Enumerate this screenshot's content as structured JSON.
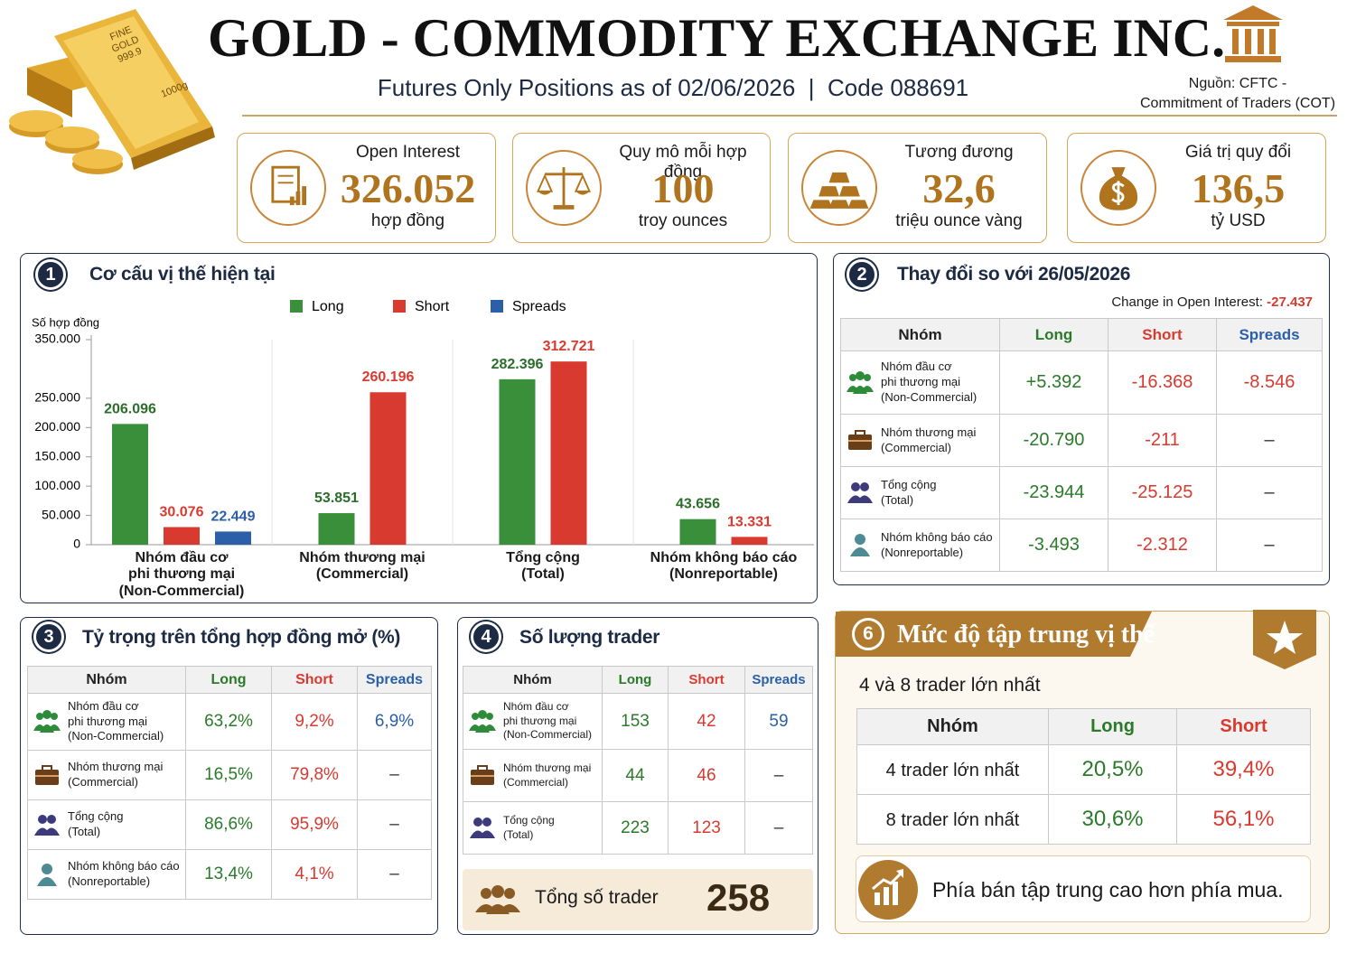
{
  "header": {
    "title": "GOLD - COMMODITY EXCHANGE INC.",
    "subtitle": "Futures Only Positions as of 02/06/2026  |  Code 088691",
    "source": "Nguồn: CFTC -\nCommitment of Traders (COT)",
    "bar_text": "FINE\nGOLD\n999.9",
    "bar_weight": "1000g"
  },
  "cards": [
    {
      "label": "Open Interest",
      "value": "326.052",
      "unit": "hợp đồng"
    },
    {
      "label": "Quy mô mỗi hợp đồng",
      "value": "100",
      "unit": "troy ounces"
    },
    {
      "label": "Tương đương",
      "value": "32,6",
      "unit": "triệu ounce vàng"
    },
    {
      "label": "Giá trị quy đổi",
      "value": "136,5",
      "unit": "tỷ USD"
    }
  ],
  "chart_data": {
    "type": "bar",
    "number": "1",
    "title": "Cơ cấu vị thế hiện tại",
    "y_label": "Số hợp đồng",
    "categories": [
      "Nhóm đầu cơ\nphi thương mại\n(Non-Commercial)",
      "Nhóm thương mại\n(Commercial)",
      "Tổng cộng\n(Total)",
      "Nhóm không báo cáo\n(Nonreportable)"
    ],
    "series": [
      {
        "name": "Long",
        "color": "#3a8f3a",
        "values": [
          206096,
          53851,
          282396,
          43656
        ],
        "value_labels": [
          "206.096",
          "53.851",
          "282.396",
          "43.656"
        ]
      },
      {
        "name": "Short",
        "color": "#d93a2f",
        "values": [
          30076,
          260196,
          312721,
          13331
        ],
        "value_labels": [
          "30.076",
          "260.196",
          "312.721",
          "13.331"
        ]
      },
      {
        "name": "Spreads",
        "color": "#2b5fa8",
        "values": [
          22449,
          null,
          null,
          null
        ],
        "value_labels": [
          "22.449",
          null,
          null,
          null
        ]
      }
    ],
    "ylim": [
      0,
      350000
    ],
    "yticks": [
      0,
      {
        "value": 50000,
        "label": "50.000"
      },
      {
        "value": 100000,
        "label": "100.000"
      },
      {
        "value": 150000,
        "label": "150.000"
      },
      {
        "value": 200000,
        "label": "200.000"
      },
      {
        "value": 250000,
        "label": "250.000"
      },
      {
        "value": 350000,
        "label": "350.000"
      }
    ],
    "legend": "top"
  },
  "changes": {
    "number": "2",
    "title": "Thay đổi so với 26/05/2026",
    "note_label": "Change in Open Interest:",
    "note_value": "-27.437",
    "header": [
      "Nhóm",
      "Long",
      "Short",
      "Spreads"
    ],
    "rows": [
      [
        "Nhóm đầu cơ\nphi thương mại\n(Non-Commercial)",
        "+5.392",
        "-16.368",
        "-8.546"
      ],
      [
        "Nhóm thương mại\n(Commercial)",
        "-20.790",
        "-211",
        "–"
      ],
      [
        "Tổng cộng\n(Total)",
        "-23.944",
        "-25.125",
        "–"
      ],
      [
        "Nhóm không báo cáo\n(Nonreportable)",
        "-3.493",
        "-2.312",
        "–"
      ]
    ]
  },
  "shares": {
    "number": "3",
    "title": "Tỷ trọng trên tổng hợp đồng mở (%)",
    "header": [
      "Nhóm",
      "Long",
      "Short",
      "Spreads"
    ],
    "rows": [
      [
        "Nhóm đầu cơ\nphi thương mại\n(Non-Commercial)",
        "63,2%",
        "9,2%",
        "6,9%"
      ],
      [
        "Nhóm thương mại\n(Commercial)",
        "16,5%",
        "79,8%",
        "–"
      ],
      [
        "Tổng cộng\n(Total)",
        "86,6%",
        "95,9%",
        "–"
      ],
      [
        "Nhóm không báo cáo\n(Nonreportable)",
        "13,4%",
        "4,1%",
        "–"
      ]
    ]
  },
  "traders": {
    "number": "4",
    "title": "Số lượng trader",
    "header": [
      "Nhóm",
      "Long",
      "Short",
      "Spreads"
    ],
    "rows": [
      [
        "Nhóm đầu cơ\nphi thương mại\n(Non-Commercial)",
        "153",
        "42",
        "59"
      ],
      [
        "Nhóm thương mại\n(Commercial)",
        "44",
        "46",
        "–"
      ],
      [
        "Tổng cộng\n(Total)",
        "223",
        "123",
        "–"
      ]
    ],
    "total_label": "Tổng số trader",
    "total_value": "258"
  },
  "concentration": {
    "number": "6",
    "title": "Mức độ tập trung vị thế",
    "subtitle": "4 và 8 trader lớn nhất",
    "header": [
      "Nhóm",
      "Long",
      "Short"
    ],
    "rows": [
      [
        "4 trader lớn nhất",
        "20,5%",
        "39,4%"
      ],
      [
        "8 trader lớn nhất",
        "30,6%",
        "56,1%"
      ]
    ],
    "conclusion": "Phía bán tập trung cao hơn phía mua."
  }
}
